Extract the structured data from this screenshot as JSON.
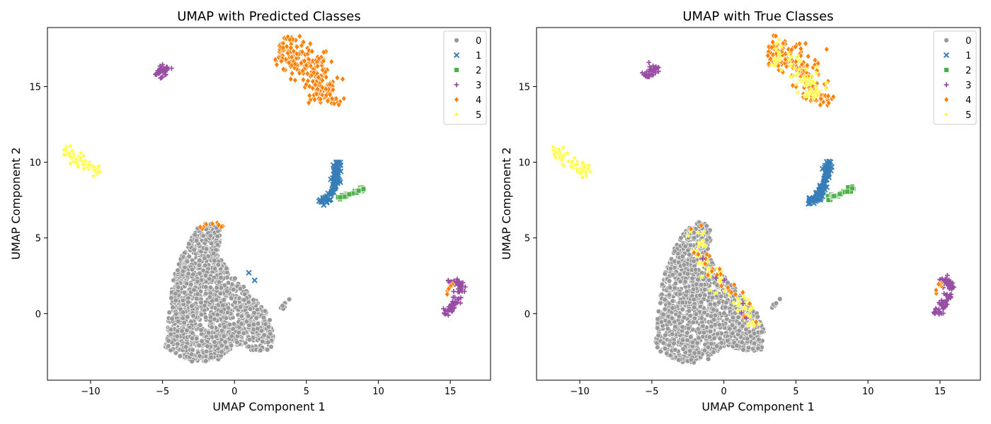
{
  "chart_data": [
    {
      "type": "scatter",
      "title": "UMAP with Predicted Classes",
      "xlabel": "UMAP Component 1",
      "ylabel": "UMAP Component 2",
      "xlim": [
        -13,
        17.8
      ],
      "ylim": [
        -4.4,
        18.9
      ],
      "xticks": [
        -10,
        -5,
        0,
        5,
        10,
        15
      ],
      "yticks": [
        0,
        5,
        10,
        15
      ],
      "legend_position": "top-right",
      "legend": [
        "0",
        "1",
        "2",
        "3",
        "4",
        "5"
      ],
      "clusters": [
        {
          "class": "0",
          "region": "main-blob",
          "cx": -0.8,
          "cy": 0.6,
          "count": 1400
        },
        {
          "class": "4",
          "region": "top-arc",
          "cx": 5.0,
          "cy": 16.2,
          "count": 260
        },
        {
          "class": "5",
          "region": "left-streak",
          "cx": -10.6,
          "cy": 10.1,
          "count": 70
        },
        {
          "class": "3",
          "region": "small-top-left",
          "cx": -5.0,
          "cy": 16.0,
          "count": 40
        },
        {
          "class": "1",
          "region": "v-shape",
          "cx": 7.0,
          "cy": 8.3,
          "count": 90
        },
        {
          "class": "2",
          "region": "v-right-arm",
          "cx": 8.4,
          "cy": 7.9,
          "count": 30
        },
        {
          "class": "3",
          "region": "right-arc",
          "cx": 15.5,
          "cy": 1.1,
          "count": 90
        },
        {
          "class": "4",
          "region": "right-arc-tip",
          "cx": 14.9,
          "cy": 1.7,
          "count": 8
        },
        {
          "class": "0",
          "region": "tail",
          "cx": 3.6,
          "cy": 0.7,
          "count": 8
        },
        {
          "class": "4",
          "region": "blob-top-spot",
          "cx": -1.8,
          "cy": 5.8,
          "count": 10
        },
        {
          "class": "1",
          "region": "outliers",
          "cx": 1.2,
          "cy": 2.4,
          "count": 2
        }
      ]
    },
    {
      "type": "scatter",
      "title": "UMAP with True Classes",
      "xlabel": "UMAP Component 1",
      "ylabel": "UMAP Component 2",
      "xlim": [
        -13,
        17.8
      ],
      "ylim": [
        -4.4,
        18.9
      ],
      "xticks": [
        -10,
        -5,
        0,
        5,
        10,
        15
      ],
      "yticks": [
        0,
        5,
        10,
        15
      ],
      "legend_position": "top-right",
      "legend": [
        "0",
        "1",
        "2",
        "3",
        "4",
        "5"
      ],
      "clusters": [
        {
          "class": "0",
          "region": "main-blob",
          "cx": -0.8,
          "cy": 0.6,
          "count": 1400
        },
        {
          "class": "4",
          "region": "top-arc",
          "cx": 5.0,
          "cy": 16.2,
          "count": 200
        },
        {
          "class": "5",
          "region": "top-arc-mixed",
          "cx": 5.2,
          "cy": 16.4,
          "count": 70
        },
        {
          "class": "5",
          "region": "left-streak",
          "cx": -10.6,
          "cy": 10.1,
          "count": 70
        },
        {
          "class": "3",
          "region": "small-top-left",
          "cx": -5.0,
          "cy": 16.0,
          "count": 40
        },
        {
          "class": "1",
          "region": "v-shape",
          "cx": 7.0,
          "cy": 8.3,
          "count": 90
        },
        {
          "class": "2",
          "region": "v-right-arm",
          "cx": 8.4,
          "cy": 7.9,
          "count": 30
        },
        {
          "class": "3",
          "region": "right-arc",
          "cx": 15.5,
          "cy": 1.1,
          "count": 90
        },
        {
          "class": "4",
          "region": "right-arc-tip",
          "cx": 14.9,
          "cy": 1.7,
          "count": 8
        },
        {
          "class": "0",
          "region": "tail",
          "cx": 3.6,
          "cy": 0.7,
          "count": 8
        },
        {
          "class": "5",
          "region": "blob-streak",
          "cx": -0.2,
          "cy": 2.6,
          "count": 70
        },
        {
          "class": "4",
          "region": "blob-streak",
          "cx": 0.6,
          "cy": 1.6,
          "count": 25
        },
        {
          "class": "3",
          "region": "blob-streak",
          "cx": -1.5,
          "cy": 5.0,
          "count": 6
        }
      ]
    }
  ],
  "colors": {
    "0": "#999999",
    "1": "#377eb8",
    "2": "#4daf4a",
    "3": "#984ea3",
    "4": "#ff7f00",
    "5": "#ffff33"
  },
  "markers": {
    "0": "circle",
    "1": "x",
    "2": "square",
    "3": "plus",
    "4": "diamond",
    "5": "star"
  }
}
